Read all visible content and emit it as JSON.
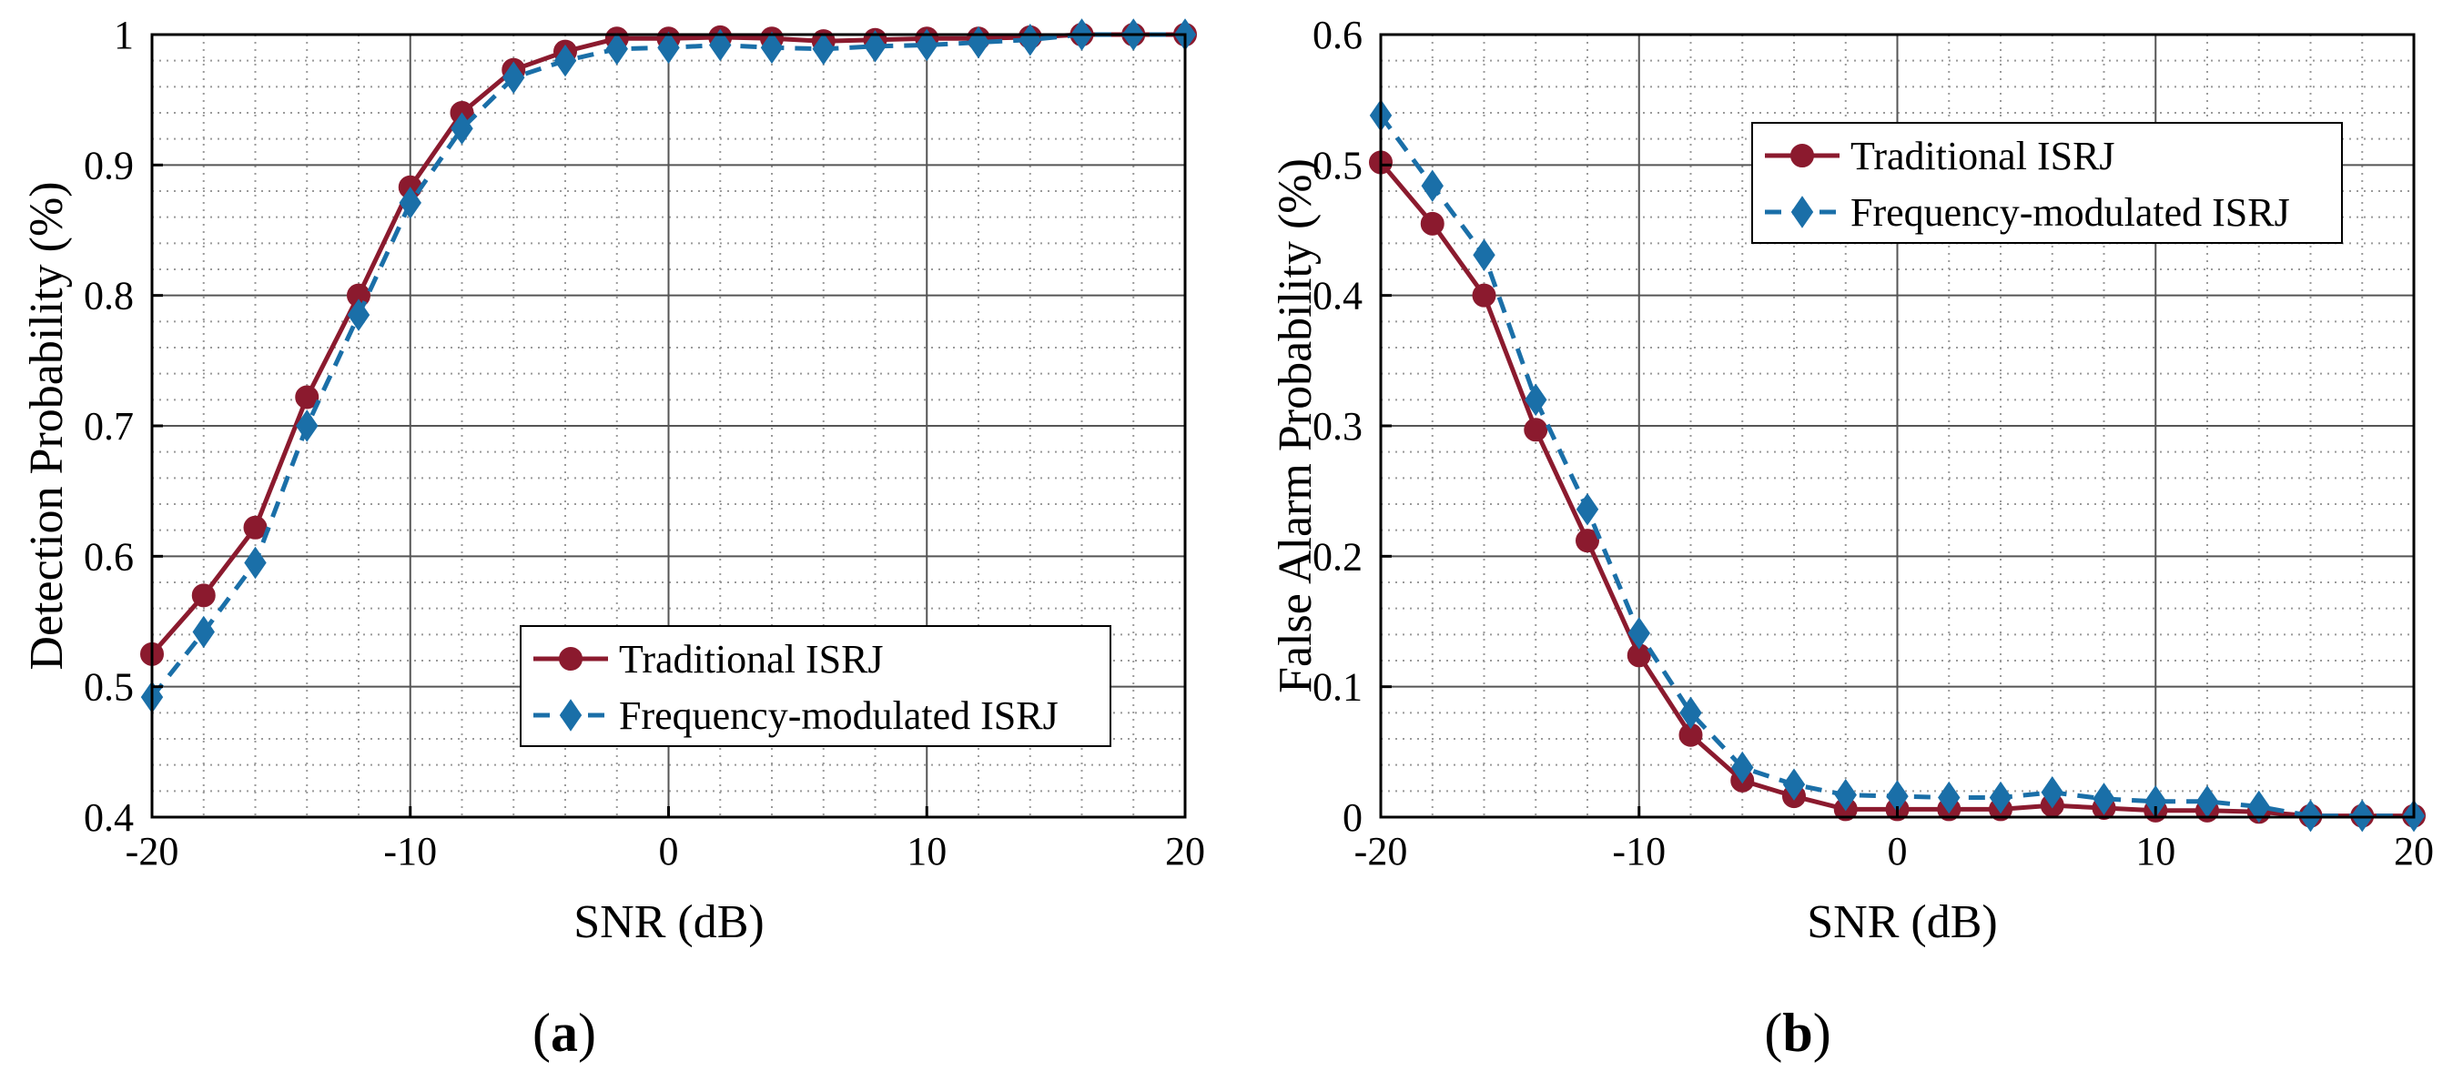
{
  "colors": {
    "traditional": "#8b1a2e",
    "frequency_modulated": "#1a6fa8",
    "grid_major": "#555555",
    "grid_minor": "#9a9a9a",
    "axis": "#000000"
  },
  "panels": [
    {
      "label_open": "(",
      "label_letter": "a",
      "label_close": ")"
    },
    {
      "label_open": "(",
      "label_letter": "b",
      "label_close": ")"
    }
  ],
  "chart_data": [
    {
      "type": "line",
      "title": "",
      "xlabel": "SNR (dB)",
      "ylabel": "Detection Probability (%)",
      "xlim": [
        -20,
        20
      ],
      "ylim": [
        0.4,
        1
      ],
      "xticks": [
        -20,
        -10,
        0,
        10,
        20
      ],
      "xtick_labels": [
        "-20",
        "-10",
        "0",
        "10",
        "20"
      ],
      "yticks": [
        0.4,
        0.5,
        0.6,
        0.7,
        0.8,
        0.9,
        1
      ],
      "ytick_labels": [
        "0.4",
        "0.5",
        "0.6",
        "0.7",
        "0.8",
        "0.9",
        "1"
      ],
      "grid": true,
      "legend_position": "lower-right",
      "x": [
        -20,
        -18,
        -16,
        -14,
        -12,
        -10,
        -8,
        -6,
        -4,
        -2,
        0,
        2,
        4,
        6,
        8,
        10,
        12,
        14,
        16,
        18,
        20
      ],
      "series": [
        {
          "name": "Traditional ISRJ",
          "key": "traditional",
          "marker": "circle",
          "dash": "solid",
          "values": [
            0.525,
            0.57,
            0.622,
            0.722,
            0.8,
            0.883,
            0.94,
            0.973,
            0.987,
            0.997,
            0.997,
            0.998,
            0.997,
            0.995,
            0.996,
            0.997,
            0.997,
            0.998,
            1.0,
            1.0,
            1.0
          ]
        },
        {
          "name": "Frequency-modulated ISRJ",
          "key": "frequency_modulated",
          "marker": "diamond",
          "dash": "dashed",
          "values": [
            0.492,
            0.542,
            0.595,
            0.7,
            0.785,
            0.871,
            0.928,
            0.967,
            0.98,
            0.989,
            0.99,
            0.992,
            0.99,
            0.989,
            0.991,
            0.992,
            0.994,
            0.996,
            1.0,
            1.0,
            1.0
          ]
        }
      ]
    },
    {
      "type": "line",
      "title": "",
      "xlabel": "SNR (dB)",
      "ylabel": "False Alarm Probability (%)",
      "xlim": [
        -20,
        20
      ],
      "ylim": [
        0,
        0.6
      ],
      "xticks": [
        -20,
        -10,
        0,
        10,
        20
      ],
      "xtick_labels": [
        "-20",
        "-10",
        "0",
        "10",
        "20"
      ],
      "yticks": [
        0,
        0.1,
        0.2,
        0.3,
        0.4,
        0.5,
        0.6
      ],
      "ytick_labels": [
        "0",
        "0.1",
        "0.2",
        "0.3",
        "0.4",
        "0.5",
        "0.6"
      ],
      "grid": true,
      "legend_position": "top-right",
      "x": [
        -20,
        -18,
        -16,
        -14,
        -12,
        -10,
        -8,
        -6,
        -4,
        -2,
        0,
        2,
        4,
        6,
        8,
        10,
        12,
        14,
        16,
        18,
        20
      ],
      "series": [
        {
          "name": "Traditional ISRJ",
          "key": "traditional",
          "marker": "circle",
          "dash": "solid",
          "values": [
            0.502,
            0.455,
            0.4,
            0.297,
            0.212,
            0.124,
            0.063,
            0.028,
            0.016,
            0.006,
            0.006,
            0.006,
            0.006,
            0.009,
            0.007,
            0.005,
            0.005,
            0.004,
            0.001,
            0.001,
            0.001
          ]
        },
        {
          "name": "Frequency-modulated ISRJ",
          "key": "frequency_modulated",
          "marker": "diamond",
          "dash": "dashed",
          "values": [
            0.538,
            0.484,
            0.431,
            0.32,
            0.236,
            0.141,
            0.08,
            0.038,
            0.025,
            0.017,
            0.016,
            0.015,
            0.015,
            0.019,
            0.014,
            0.012,
            0.012,
            0.008,
            0.001,
            0.001,
            0.001
          ]
        }
      ]
    }
  ]
}
